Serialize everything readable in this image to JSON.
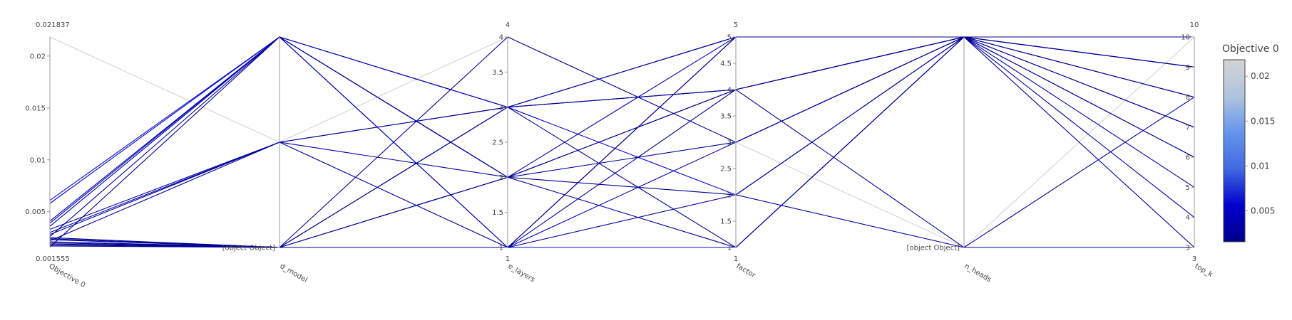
{
  "chart_data": {
    "type": "parallel_coordinates",
    "color_scale": [
      "#00008b",
      "#0000cd",
      "#4169e1",
      "#6495ed",
      "#b0c4de",
      "#d3d3d3"
    ],
    "colorbar": {
      "title": "Objective 0",
      "range": [
        0.001555,
        0.021837
      ],
      "ticks": [
        0.005,
        0.01,
        0.015,
        0.02
      ],
      "tick_labels": [
        "0.005",
        "0.01",
        "0.015",
        "0.02"
      ]
    },
    "axes": [
      {
        "key": "objective_0",
        "label": "Objective 0",
        "range": [
          0.001555,
          0.021837
        ],
        "range_labels": [
          "0.001555",
          "0.021837"
        ],
        "ticks": [
          0.005,
          0.01,
          0.015,
          0.02
        ],
        "tick_labels": [
          "0.005",
          "0.01",
          "0.015",
          "0.02"
        ]
      },
      {
        "key": "d_model",
        "label": "d_model",
        "range": [
          0,
          2
        ],
        "range_labels": [
          "",
          ""
        ],
        "ticks": [
          0
        ],
        "tick_labels": [
          "[object Object]"
        ]
      },
      {
        "key": "e_layers",
        "label": "e_layers",
        "range": [
          1,
          4
        ],
        "range_labels": [
          "1",
          "4"
        ],
        "ticks": [
          1,
          1.5,
          2,
          2.5,
          3,
          3.5,
          4
        ],
        "tick_labels": [
          "1",
          "1.5",
          "2",
          "2.5",
          "3",
          "3.5",
          "4"
        ]
      },
      {
        "key": "factor",
        "label": "factor",
        "range": [
          1,
          5
        ],
        "range_labels": [
          "1",
          "5"
        ],
        "ticks": [
          1,
          1.5,
          2,
          2.5,
          3,
          3.5,
          4,
          4.5,
          5
        ],
        "tick_labels": [
          "1",
          "1.5",
          "2",
          "2.5",
          "3",
          "3.5",
          "4",
          "4.5",
          "5"
        ]
      },
      {
        "key": "n_heads",
        "label": "n_heads",
        "range": [
          0,
          1
        ],
        "range_labels": [
          "",
          ""
        ],
        "ticks": [
          0
        ],
        "tick_labels": [
          "[object Object]"
        ]
      },
      {
        "key": "top_k",
        "label": "top_k",
        "range": [
          3,
          10
        ],
        "range_labels": [
          "3",
          "10"
        ],
        "ticks": [
          3,
          4,
          5,
          6,
          7,
          8,
          9,
          10
        ],
        "tick_labels": [
          "3",
          "4",
          "5",
          "6",
          "7",
          "8",
          "9",
          "10"
        ]
      }
    ],
    "trials": [
      [
        0.021837,
        1,
        4,
        3,
        0,
        10
      ],
      [
        0.0061,
        2,
        1,
        1,
        1,
        10
      ],
      [
        0.0058,
        2,
        3,
        2,
        1,
        9
      ],
      [
        0.0041,
        2,
        2,
        4,
        1,
        8
      ],
      [
        0.0039,
        2,
        3,
        5,
        1,
        7
      ],
      [
        0.0036,
        2,
        1,
        3,
        1,
        6
      ],
      [
        0.0033,
        1,
        2,
        5,
        1,
        5
      ],
      [
        0.003,
        1,
        3,
        4,
        1,
        4
      ],
      [
        0.0028,
        1,
        1,
        2,
        0,
        3
      ],
      [
        0.0026,
        2,
        2,
        1,
        1,
        10
      ],
      [
        0.0025,
        0,
        3,
        5,
        1,
        9
      ],
      [
        0.0024,
        0,
        1,
        4,
        0,
        8
      ],
      [
        0.0023,
        0,
        2,
        3,
        1,
        7
      ],
      [
        0.0022,
        1,
        3,
        1,
        1,
        6
      ],
      [
        0.0021,
        0,
        1,
        5,
        1,
        10
      ],
      [
        0.002,
        0,
        2,
        2,
        1,
        3
      ],
      [
        0.0019,
        0,
        4,
        3,
        1,
        9
      ],
      [
        0.0018,
        0,
        3,
        4,
        1,
        10
      ],
      [
        0.0017,
        0,
        1,
        5,
        1,
        8
      ],
      [
        0.0016,
        2,
        2,
        4,
        1,
        10
      ]
    ]
  }
}
